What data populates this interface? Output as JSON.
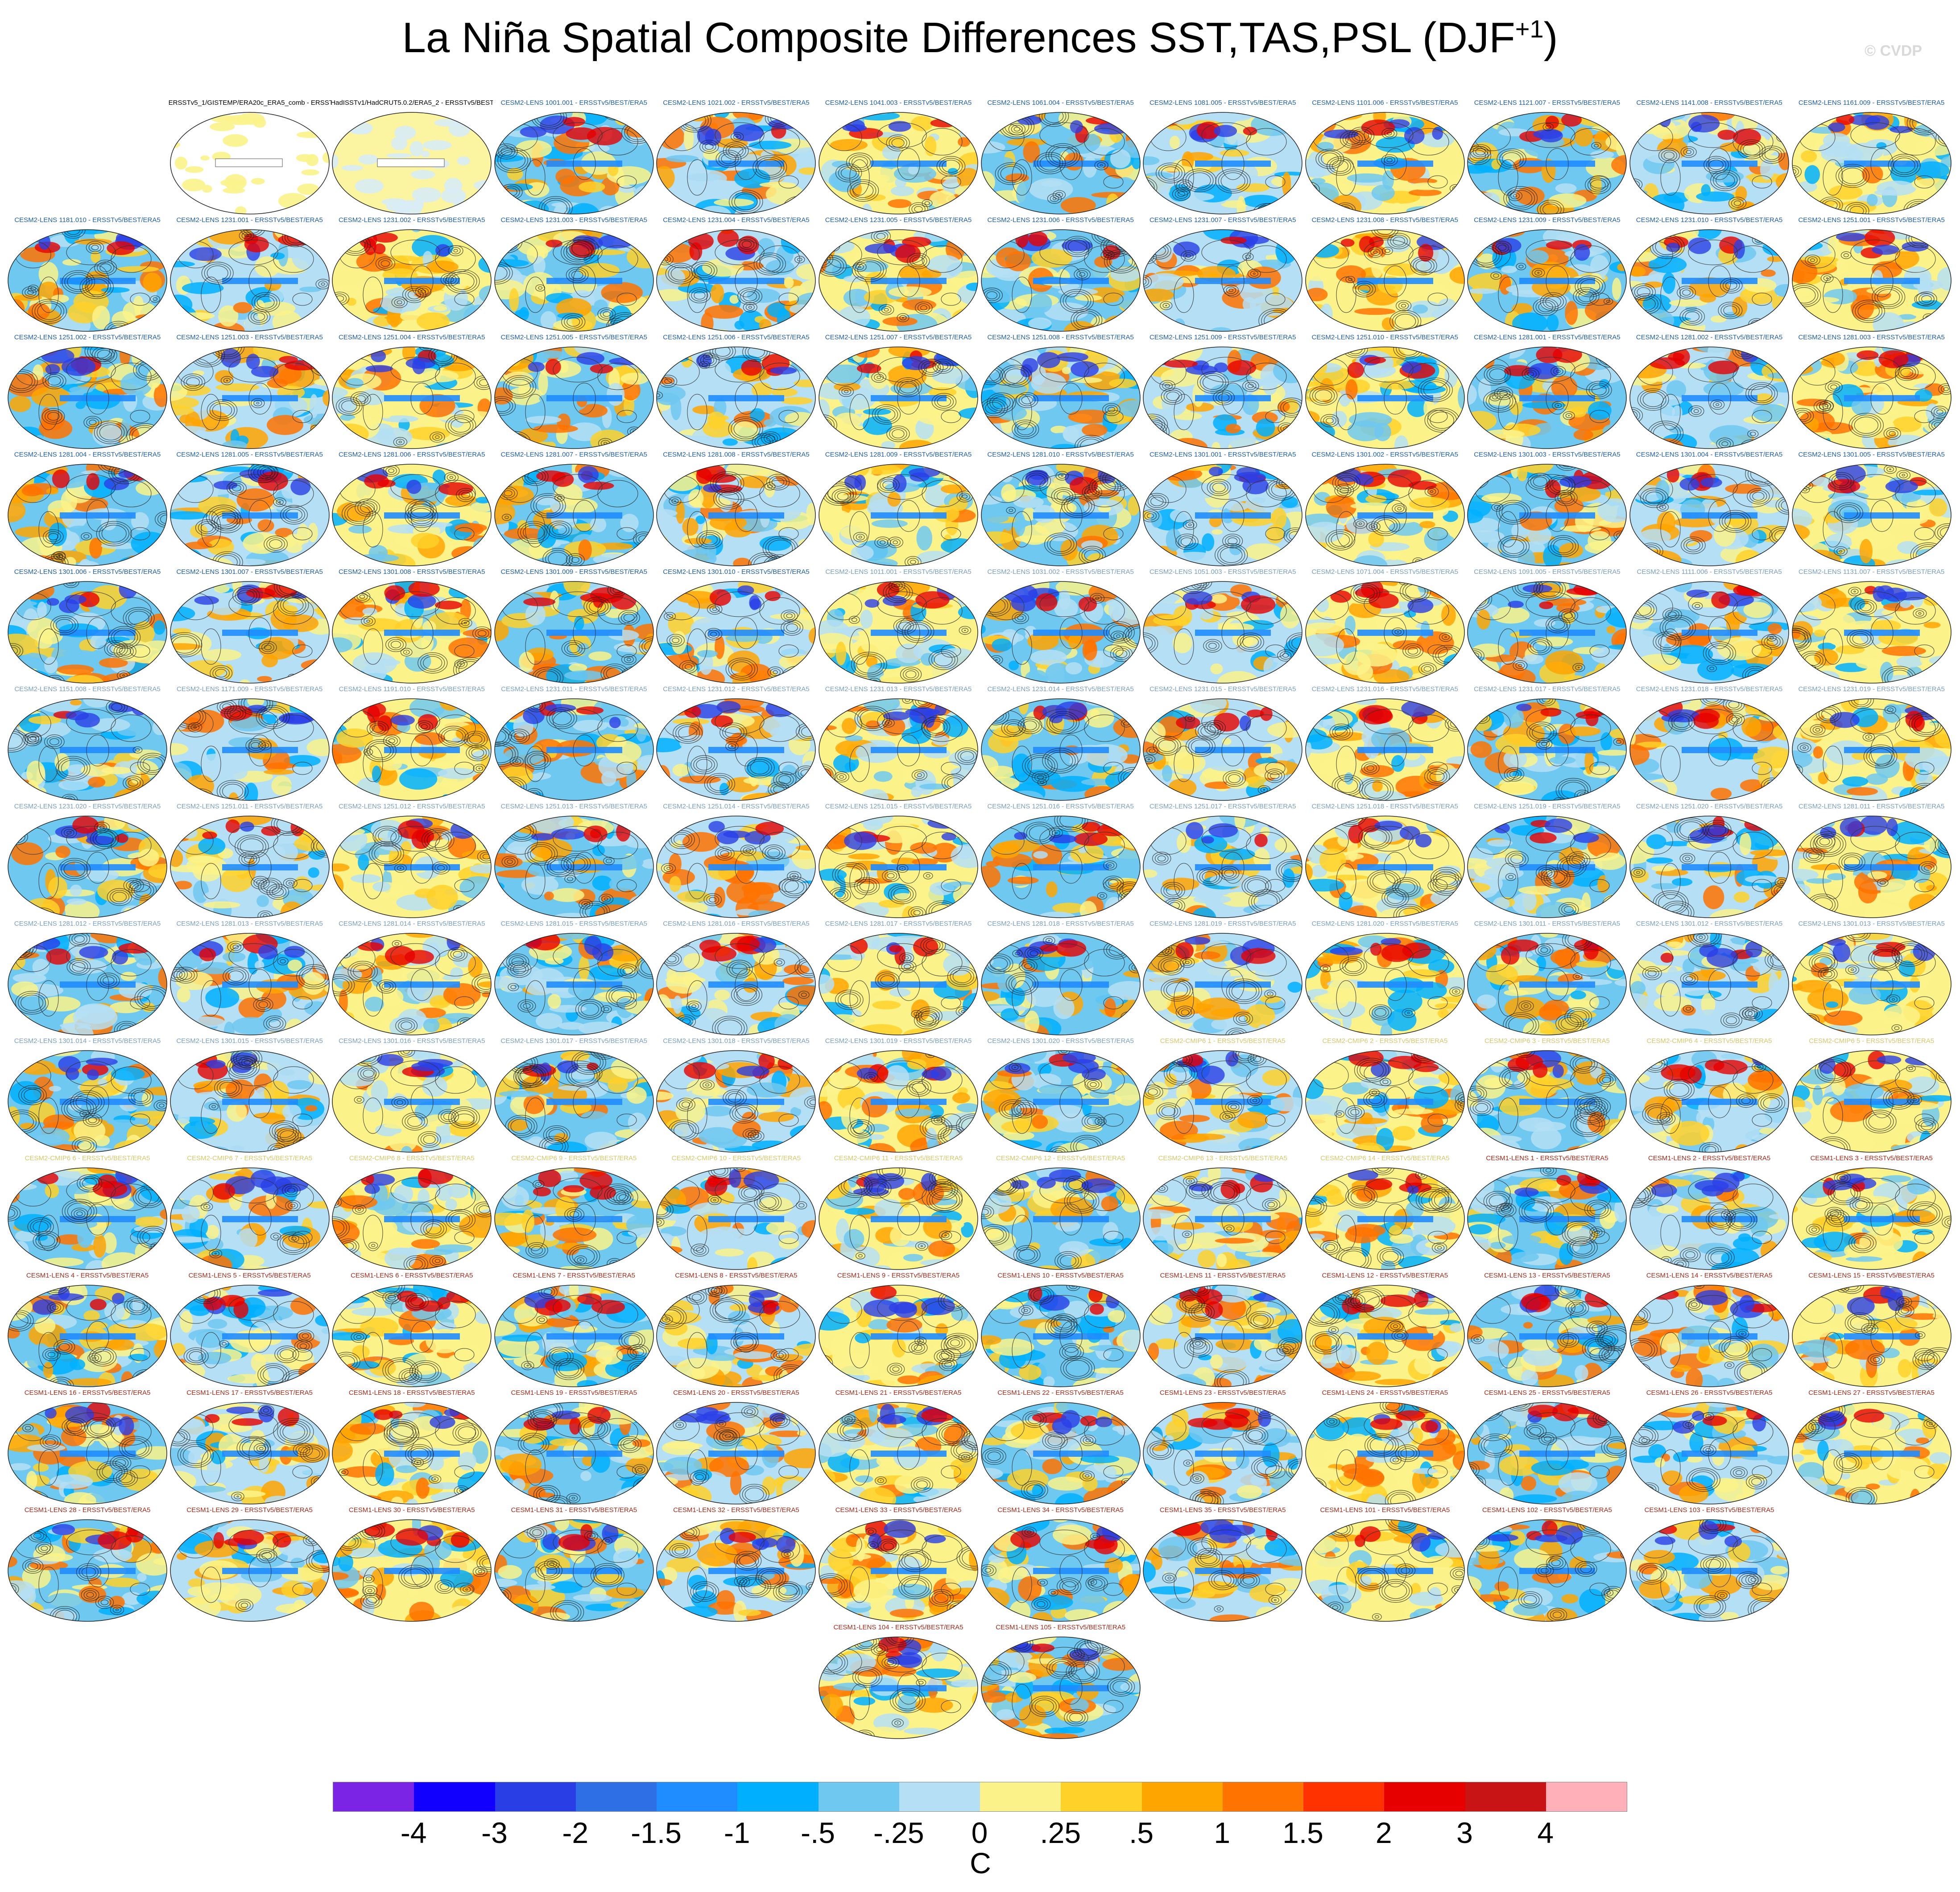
{
  "title_main": "La Niña Spatial Composite Differences SST,TAS,PSL (DJF",
  "title_sup": "+1",
  "title_close": ")",
  "watermark": "© CVDP",
  "colorbar": {
    "units": "C",
    "colors": [
      "#7b24e6",
      "#1200ff",
      "#2a3ee6",
      "#2f6fe6",
      "#1f8cff",
      "#00b0ff",
      "#6ec8f0",
      "#b5dff4",
      "#fbf38a",
      "#ffd129",
      "#ffa500",
      "#ff7300",
      "#ff3200",
      "#e60000",
      "#c81414",
      "#ffb0b8"
    ],
    "ticks": [
      "-4",
      "-3",
      "-2",
      "-1.5",
      "-1",
      "-.5",
      "-.25",
      "0",
      ".25",
      ".5",
      "1",
      "1.5",
      "2",
      "3",
      "4"
    ]
  },
  "panels": [
    {
      "label": "ERSSTv5_1/GISTEMP/ERA20c_ERA5_comb - ERSSTv5/BEST/ERA5",
      "kind": "obs"
    },
    {
      "label": "HadISSTv1/HadCRUT5.0.2/ERA5_2 - ERSSTv5/BEST/ERA5",
      "kind": "obs2"
    },
    {
      "label": "CESM2-LENS 1001.001 - ERSSTv5/BEST/ERA5",
      "kind": "c2"
    },
    {
      "label": "CESM2-LENS 1021.002 - ERSSTv5/BEST/ERA5",
      "kind": "c2"
    },
    {
      "label": "CESM2-LENS 1041.003 - ERSSTv5/BEST/ERA5",
      "kind": "c2"
    },
    {
      "label": "CESM2-LENS 1061.004 - ERSSTv5/BEST/ERA5",
      "kind": "c2"
    },
    {
      "label": "CESM2-LENS 1081.005 - ERSSTv5/BEST/ERA5",
      "kind": "c2"
    },
    {
      "label": "CESM2-LENS 1101.006 - ERSSTv5/BEST/ERA5",
      "kind": "c2"
    },
    {
      "label": "CESM2-LENS 1121.007 - ERSSTv5/BEST/ERA5",
      "kind": "c2"
    },
    {
      "label": "CESM2-LENS 1141.008 - ERSSTv5/BEST/ERA5",
      "kind": "c2"
    },
    {
      "label": "CESM2-LENS 1161.009 - ERSSTv5/BEST/ERA5",
      "kind": "c2"
    },
    {
      "label": "CESM2-LENS 1181.010 - ERSSTv5/BEST/ERA5",
      "kind": "c2"
    },
    {
      "label": "CESM2-LENS 1231.001 - ERSSTv5/BEST/ERA5",
      "kind": "c2"
    },
    {
      "label": "CESM2-LENS 1231.002 - ERSSTv5/BEST/ERA5",
      "kind": "c2"
    },
    {
      "label": "CESM2-LENS 1231.003 - ERSSTv5/BEST/ERA5",
      "kind": "c2"
    },
    {
      "label": "CESM2-LENS 1231.004 - ERSSTv5/BEST/ERA5",
      "kind": "c2"
    },
    {
      "label": "CESM2-LENS 1231.005 - ERSSTv5/BEST/ERA5",
      "kind": "c2"
    },
    {
      "label": "CESM2-LENS 1231.006 - ERSSTv5/BEST/ERA5",
      "kind": "c2"
    },
    {
      "label": "CESM2-LENS 1231.007 - ERSSTv5/BEST/ERA5",
      "kind": "c2"
    },
    {
      "label": "CESM2-LENS 1231.008 - ERSSTv5/BEST/ERA5",
      "kind": "c2"
    },
    {
      "label": "CESM2-LENS 1231.009 - ERSSTv5/BEST/ERA5",
      "kind": "c2"
    },
    {
      "label": "CESM2-LENS 1231.010 - ERSSTv5/BEST/ERA5",
      "kind": "c2"
    },
    {
      "label": "CESM2-LENS 1251.001 - ERSSTv5/BEST/ERA5",
      "kind": "c2"
    },
    {
      "label": "CESM2-LENS 1251.002 - ERSSTv5/BEST/ERA5",
      "kind": "c2"
    },
    {
      "label": "CESM2-LENS 1251.003 - ERSSTv5/BEST/ERA5",
      "kind": "c2"
    },
    {
      "label": "CESM2-LENS 1251.004 - ERSSTv5/BEST/ERA5",
      "kind": "c2"
    },
    {
      "label": "CESM2-LENS 1251.005 - ERSSTv5/BEST/ERA5",
      "kind": "c2"
    },
    {
      "label": "CESM2-LENS 1251.006 - ERSSTv5/BEST/ERA5",
      "kind": "c2"
    },
    {
      "label": "CESM2-LENS 1251.007 - ERSSTv5/BEST/ERA5",
      "kind": "c2"
    },
    {
      "label": "CESM2-LENS 1251.008 - ERSSTv5/BEST/ERA5",
      "kind": "c2"
    },
    {
      "label": "CESM2-LENS 1251.009 - ERSSTv5/BEST/ERA5",
      "kind": "c2"
    },
    {
      "label": "CESM2-LENS 1251.010 - ERSSTv5/BEST/ERA5",
      "kind": "c2"
    },
    {
      "label": "CESM2-LENS 1281.001 - ERSSTv5/BEST/ERA5",
      "kind": "c2"
    },
    {
      "label": "CESM2-LENS 1281.002 - ERSSTv5/BEST/ERA5",
      "kind": "c2"
    },
    {
      "label": "CESM2-LENS 1281.003 - ERSSTv5/BEST/ERA5",
      "kind": "c2"
    },
    {
      "label": "CESM2-LENS 1281.004 - ERSSTv5/BEST/ERA5",
      "kind": "c2"
    },
    {
      "label": "CESM2-LENS 1281.005 - ERSSTv5/BEST/ERA5",
      "kind": "c2"
    },
    {
      "label": "CESM2-LENS 1281.006 - ERSSTv5/BEST/ERA5",
      "kind": "c2"
    },
    {
      "label": "CESM2-LENS 1281.007 - ERSSTv5/BEST/ERA5",
      "kind": "c2"
    },
    {
      "label": "CESM2-LENS 1281.008 - ERSSTv5/BEST/ERA5",
      "kind": "c2"
    },
    {
      "label": "CESM2-LENS 1281.009 - ERSSTv5/BEST/ERA5",
      "kind": "c2"
    },
    {
      "label": "CESM2-LENS 1281.010 - ERSSTv5/BEST/ERA5",
      "kind": "c2"
    },
    {
      "label": "CESM2-LENS 1301.001 - ERSSTv5/BEST/ERA5",
      "kind": "c2"
    },
    {
      "label": "CESM2-LENS 1301.002 - ERSSTv5/BEST/ERA5",
      "kind": "c2"
    },
    {
      "label": "CESM2-LENS 1301.003 - ERSSTv5/BEST/ERA5",
      "kind": "c2"
    },
    {
      "label": "CESM2-LENS 1301.004 - ERSSTv5/BEST/ERA5",
      "kind": "c2"
    },
    {
      "label": "CESM2-LENS 1301.005 - ERSSTv5/BEST/ERA5",
      "kind": "c2"
    },
    {
      "label": "CESM2-LENS 1301.006 - ERSSTv5/BEST/ERA5",
      "kind": "c2"
    },
    {
      "label": "CESM2-LENS 1301.007 - ERSSTv5/BEST/ERA5",
      "kind": "c2"
    },
    {
      "label": "CESM2-LENS 1301.008 - ERSSTv5/BEST/ERA5",
      "kind": "c2"
    },
    {
      "label": "CESM2-LENS 1301.009 - ERSSTv5/BEST/ERA5",
      "kind": "c2"
    },
    {
      "label": "CESM2-LENS 1301.010 - ERSSTv5/BEST/ERA5",
      "kind": "c2"
    },
    {
      "label": "CESM2-LENS 1011.001 - ERSSTv5/BEST/ERA5",
      "kind": "c2b"
    },
    {
      "label": "CESM2-LENS 1031.002 - ERSSTv5/BEST/ERA5",
      "kind": "c2b"
    },
    {
      "label": "CESM2-LENS 1051.003 - ERSSTv5/BEST/ERA5",
      "kind": "c2b"
    },
    {
      "label": "CESM2-LENS 1071.004 - ERSSTv5/BEST/ERA5",
      "kind": "c2b"
    },
    {
      "label": "CESM2-LENS 1091.005 - ERSSTv5/BEST/ERA5",
      "kind": "c2b"
    },
    {
      "label": "CESM2-LENS 1111.006 - ERSSTv5/BEST/ERA5",
      "kind": "c2b"
    },
    {
      "label": "CESM2-LENS 1131.007 - ERSSTv5/BEST/ERA5",
      "kind": "c2b"
    },
    {
      "label": "CESM2-LENS 1151.008 - ERSSTv5/BEST/ERA5",
      "kind": "c2b"
    },
    {
      "label": "CESM2-LENS 1171.009 - ERSSTv5/BEST/ERA5",
      "kind": "c2b"
    },
    {
      "label": "CESM2-LENS 1191.010 - ERSSTv5/BEST/ERA5",
      "kind": "c2b"
    },
    {
      "label": "CESM2-LENS 1231.011 - ERSSTv5/BEST/ERA5",
      "kind": "c2b"
    },
    {
      "label": "CESM2-LENS 1231.012 - ERSSTv5/BEST/ERA5",
      "kind": "c2b"
    },
    {
      "label": "CESM2-LENS 1231.013 - ERSSTv5/BEST/ERA5",
      "kind": "c2b"
    },
    {
      "label": "CESM2-LENS 1231.014 - ERSSTv5/BEST/ERA5",
      "kind": "c2b"
    },
    {
      "label": "CESM2-LENS 1231.015 - ERSSTv5/BEST/ERA5",
      "kind": "c2b"
    },
    {
      "label": "CESM2-LENS 1231.016 - ERSSTv5/BEST/ERA5",
      "kind": "c2b"
    },
    {
      "label": "CESM2-LENS 1231.017 - ERSSTv5/BEST/ERA5",
      "kind": "c2b"
    },
    {
      "label": "CESM2-LENS 1231.018 - ERSSTv5/BEST/ERA5",
      "kind": "c2b"
    },
    {
      "label": "CESM2-LENS 1231.019 - ERSSTv5/BEST/ERA5",
      "kind": "c2b"
    },
    {
      "label": "CESM2-LENS 1231.020 - ERSSTv5/BEST/ERA5",
      "kind": "c2b"
    },
    {
      "label": "CESM2-LENS 1251.011 - ERSSTv5/BEST/ERA5",
      "kind": "c2b"
    },
    {
      "label": "CESM2-LENS 1251.012 - ERSSTv5/BEST/ERA5",
      "kind": "c2b"
    },
    {
      "label": "CESM2-LENS 1251.013 - ERSSTv5/BEST/ERA5",
      "kind": "c2b"
    },
    {
      "label": "CESM2-LENS 1251.014 - ERSSTv5/BEST/ERA5",
      "kind": "c2b"
    },
    {
      "label": "CESM2-LENS 1251.015 - ERSSTv5/BEST/ERA5",
      "kind": "c2b"
    },
    {
      "label": "CESM2-LENS 1251.016 - ERSSTv5/BEST/ERA5",
      "kind": "c2b"
    },
    {
      "label": "CESM2-LENS 1251.017 - ERSSTv5/BEST/ERA5",
      "kind": "c2b"
    },
    {
      "label": "CESM2-LENS 1251.018 - ERSSTv5/BEST/ERA5",
      "kind": "c2b"
    },
    {
      "label": "CESM2-LENS 1251.019 - ERSSTv5/BEST/ERA5",
      "kind": "c2b"
    },
    {
      "label": "CESM2-LENS 1251.020 - ERSSTv5/BEST/ERA5",
      "kind": "c2b"
    },
    {
      "label": "CESM2-LENS 1281.011 - ERSSTv5/BEST/ERA5",
      "kind": "c2b"
    },
    {
      "label": "CESM2-LENS 1281.012 - ERSSTv5/BEST/ERA5",
      "kind": "c2b"
    },
    {
      "label": "CESM2-LENS 1281.013 - ERSSTv5/BEST/ERA5",
      "kind": "c2b"
    },
    {
      "label": "CESM2-LENS 1281.014 - ERSSTv5/BEST/ERA5",
      "kind": "c2b"
    },
    {
      "label": "CESM2-LENS 1281.015 - ERSSTv5/BEST/ERA5",
      "kind": "c2b"
    },
    {
      "label": "CESM2-LENS 1281.016 - ERSSTv5/BEST/ERA5",
      "kind": "c2b"
    },
    {
      "label": "CESM2-LENS 1281.017 - ERSSTv5/BEST/ERA5",
      "kind": "c2b"
    },
    {
      "label": "CESM2-LENS 1281.018 - ERSSTv5/BEST/ERA5",
      "kind": "c2b"
    },
    {
      "label": "CESM2-LENS 1281.019 - ERSSTv5/BEST/ERA5",
      "kind": "c2b"
    },
    {
      "label": "CESM2-LENS 1281.020 - ERSSTv5/BEST/ERA5",
      "kind": "c2b"
    },
    {
      "label": "CESM2-LENS 1301.011 - ERSSTv5/BEST/ERA5",
      "kind": "c2b"
    },
    {
      "label": "CESM2-LENS 1301.012 - ERSSTv5/BEST/ERA5",
      "kind": "c2b"
    },
    {
      "label": "CESM2-LENS 1301.013 - ERSSTv5/BEST/ERA5",
      "kind": "c2b"
    },
    {
      "label": "CESM2-LENS 1301.014 - ERSSTv5/BEST/ERA5",
      "kind": "c2b"
    },
    {
      "label": "CESM2-LENS 1301.015 - ERSSTv5/BEST/ERA5",
      "kind": "c2b"
    },
    {
      "label": "CESM2-LENS 1301.016 - ERSSTv5/BEST/ERA5",
      "kind": "c2b"
    },
    {
      "label": "CESM2-LENS 1301.017 - ERSSTv5/BEST/ERA5",
      "kind": "c2b"
    },
    {
      "label": "CESM2-LENS 1301.018 - ERSSTv5/BEST/ERA5",
      "kind": "c2b"
    },
    {
      "label": "CESM2-LENS 1301.019 - ERSSTv5/BEST/ERA5",
      "kind": "c2b"
    },
    {
      "label": "CESM2-LENS 1301.020 - ERSSTv5/BEST/ERA5",
      "kind": "c2b"
    },
    {
      "label": "CESM2-CMIP6 1 - ERSSTv5/BEST/ERA5",
      "kind": "cmip"
    },
    {
      "label": "CESM2-CMIP6 2 - ERSSTv5/BEST/ERA5",
      "kind": "cmip"
    },
    {
      "label": "CESM2-CMIP6 3 - ERSSTv5/BEST/ERA5",
      "kind": "cmip"
    },
    {
      "label": "CESM2-CMIP6 4 - ERSSTv5/BEST/ERA5",
      "kind": "cmip"
    },
    {
      "label": "CESM2-CMIP6 5 - ERSSTv5/BEST/ERA5",
      "kind": "cmip"
    },
    {
      "label": "CESM2-CMIP6 6 - ERSSTv5/BEST/ERA5",
      "kind": "cmip"
    },
    {
      "label": "CESM2-CMIP6 7 - ERSSTv5/BEST/ERA5",
      "kind": "cmip"
    },
    {
      "label": "CESM2-CMIP6 8 - ERSSTv5/BEST/ERA5",
      "kind": "cmip"
    },
    {
      "label": "CESM2-CMIP6 9 - ERSSTv5/BEST/ERA5",
      "kind": "cmip"
    },
    {
      "label": "CESM2-CMIP6 10 - ERSSTv5/BEST/ERA5",
      "kind": "cmip"
    },
    {
      "label": "CESM2-CMIP6 11 - ERSSTv5/BEST/ERA5",
      "kind": "cmip"
    },
    {
      "label": "CESM2-CMIP6 12 - ERSSTv5/BEST/ERA5",
      "kind": "cmip"
    },
    {
      "label": "CESM2-CMIP6 13 - ERSSTv5/BEST/ERA5",
      "kind": "cmip"
    },
    {
      "label": "CESM2-CMIP6 14 - ERSSTv5/BEST/ERA5",
      "kind": "cmip"
    },
    {
      "label": "CESM1-LENS 1 - ERSSTv5/BEST/ERA5",
      "kind": "c1"
    },
    {
      "label": "CESM1-LENS 2 - ERSSTv5/BEST/ERA5",
      "kind": "c1"
    },
    {
      "label": "CESM1-LENS 3 - ERSSTv5/BEST/ERA5",
      "kind": "c1"
    },
    {
      "label": "CESM1-LENS 4 - ERSSTv5/BEST/ERA5",
      "kind": "c1"
    },
    {
      "label": "CESM1-LENS 5 - ERSSTv5/BEST/ERA5",
      "kind": "c1"
    },
    {
      "label": "CESM1-LENS 6 - ERSSTv5/BEST/ERA5",
      "kind": "c1"
    },
    {
      "label": "CESM1-LENS 7 - ERSSTv5/BEST/ERA5",
      "kind": "c1"
    },
    {
      "label": "CESM1-LENS 8 - ERSSTv5/BEST/ERA5",
      "kind": "c1"
    },
    {
      "label": "CESM1-LENS 9 - ERSSTv5/BEST/ERA5",
      "kind": "c1"
    },
    {
      "label": "CESM1-LENS 10 - ERSSTv5/BEST/ERA5",
      "kind": "c1"
    },
    {
      "label": "CESM1-LENS 11 - ERSSTv5/BEST/ERA5",
      "kind": "c1"
    },
    {
      "label": "CESM1-LENS 12 - ERSSTv5/BEST/ERA5",
      "kind": "c1"
    },
    {
      "label": "CESM1-LENS 13 - ERSSTv5/BEST/ERA5",
      "kind": "c1"
    },
    {
      "label": "CESM1-LENS 14 - ERSSTv5/BEST/ERA5",
      "kind": "c1"
    },
    {
      "label": "CESM1-LENS 15 - ERSSTv5/BEST/ERA5",
      "kind": "c1"
    },
    {
      "label": "CESM1-LENS 16 - ERSSTv5/BEST/ERA5",
      "kind": "c1"
    },
    {
      "label": "CESM1-LENS 17 - ERSSTv5/BEST/ERA5",
      "kind": "c1"
    },
    {
      "label": "CESM1-LENS 18 - ERSSTv5/BEST/ERA5",
      "kind": "c1"
    },
    {
      "label": "CESM1-LENS 19 - ERSSTv5/BEST/ERA5",
      "kind": "c1"
    },
    {
      "label": "CESM1-LENS 20 - ERSSTv5/BEST/ERA5",
      "kind": "c1"
    },
    {
      "label": "CESM1-LENS 21 - ERSSTv5/BEST/ERA5",
      "kind": "c1"
    },
    {
      "label": "CESM1-LENS 22 - ERSSTv5/BEST/ERA5",
      "kind": "c1"
    },
    {
      "label": "CESM1-LENS 23 - ERSSTv5/BEST/ERA5",
      "kind": "c1"
    },
    {
      "label": "CESM1-LENS 24 - ERSSTv5/BEST/ERA5",
      "kind": "c1"
    },
    {
      "label": "CESM1-LENS 25 - ERSSTv5/BEST/ERA5",
      "kind": "c1"
    },
    {
      "label": "CESM1-LENS 26 - ERSSTv5/BEST/ERA5",
      "kind": "c1"
    },
    {
      "label": "CESM1-LENS 27 - ERSSTv5/BEST/ERA5",
      "kind": "c1"
    },
    {
      "label": "CESM1-LENS 28 - ERSSTv5/BEST/ERA5",
      "kind": "c1"
    },
    {
      "label": "CESM1-LENS 29 - ERSSTv5/BEST/ERA5",
      "kind": "c1"
    },
    {
      "label": "CESM1-LENS 30 - ERSSTv5/BEST/ERA5",
      "kind": "c1"
    },
    {
      "label": "CESM1-LENS 31 - ERSSTv5/BEST/ERA5",
      "kind": "c1"
    },
    {
      "label": "CESM1-LENS 32 - ERSSTv5/BEST/ERA5",
      "kind": "c1"
    },
    {
      "label": "CESM1-LENS 33 - ERSSTv5/BEST/ERA5",
      "kind": "c1"
    },
    {
      "label": "CESM1-LENS 34 - ERSSTv5/BEST/ERA5",
      "kind": "c1"
    },
    {
      "label": "CESM1-LENS 35 - ERSSTv5/BEST/ERA5",
      "kind": "c1"
    },
    {
      "label": "CESM1-LENS 101 - ERSSTv5/BEST/ERA5",
      "kind": "c1"
    },
    {
      "label": "CESM1-LENS 102 - ERSSTv5/BEST/ERA5",
      "kind": "c1"
    },
    {
      "label": "CESM1-LENS 103 - ERSSTv5/BEST/ERA5",
      "kind": "c1"
    },
    {
      "label": "CESM1-LENS 104 - ERSSTv5/BEST/ERA5",
      "kind": "c1"
    },
    {
      "label": "CESM1-LENS 105 - ERSSTv5/BEST/ERA5",
      "kind": "c1"
    }
  ],
  "label_colors": {
    "obs": "#000000",
    "obs2": "#000000",
    "c2": "#1f5fa8",
    "c2b": "#7a9fbf",
    "cmip": "#d6c86a",
    "c1": "#a52a1a"
  }
}
